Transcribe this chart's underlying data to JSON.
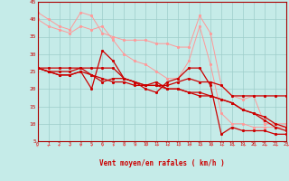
{
  "bg_color": "#c5ebe8",
  "grid_color": "#9ececa",
  "xlabel": "Vent moyen/en rafales ( km/h )",
  "xlim": [
    0,
    23
  ],
  "ylim": [
    5,
    45
  ],
  "yticks": [
    5,
    10,
    15,
    20,
    25,
    30,
    35,
    40,
    45
  ],
  "xticks": [
    0,
    1,
    2,
    3,
    4,
    5,
    6,
    7,
    8,
    9,
    10,
    11,
    12,
    13,
    14,
    15,
    16,
    17,
    18,
    19,
    20,
    21,
    22,
    23
  ],
  "lines_pink1": [
    42,
    40,
    38,
    37,
    42,
    41,
    36,
    35,
    34,
    34,
    34,
    33,
    33,
    32,
    32,
    41,
    36,
    21,
    18,
    17,
    18,
    10,
    10,
    10
  ],
  "lines_pink2": [
    40,
    38,
    37,
    36,
    38,
    37,
    38,
    34,
    30,
    28,
    27,
    25,
    23,
    23,
    28,
    38,
    27,
    13,
    10,
    10,
    9,
    9,
    9,
    9
  ],
  "lines_red1": [
    26,
    26,
    26,
    26,
    26,
    26,
    26,
    26,
    23,
    22,
    21,
    21,
    21,
    22,
    23,
    22,
    22,
    21,
    18,
    18,
    18,
    18,
    18,
    18
  ],
  "lines_red2": [
    26,
    25,
    25,
    25,
    26,
    24,
    22,
    23,
    23,
    22,
    21,
    22,
    20,
    20,
    19,
    18,
    18,
    17,
    16,
    14,
    13,
    12,
    10,
    9
  ],
  "lines_red3": [
    26,
    25,
    24,
    24,
    25,
    24,
    23,
    22,
    22,
    21,
    21,
    21,
    20,
    20,
    19,
    19,
    18,
    17,
    16,
    14,
    13,
    11,
    9,
    8
  ],
  "lines_red4": [
    26,
    25,
    24,
    24,
    25,
    20,
    31,
    28,
    23,
    22,
    20,
    19,
    22,
    23,
    26,
    26,
    21,
    7,
    9,
    8,
    8,
    8,
    7,
    7
  ],
  "pink_color": "#ff9999",
  "red_color": "#cc0000",
  "spine_color": "#aa0000",
  "arrow_angles": [
    10,
    15,
    20,
    20,
    20,
    25,
    30,
    35,
    40,
    45,
    50,
    55,
    60,
    65,
    65,
    70,
    70,
    75,
    75,
    80,
    80,
    80,
    85,
    90
  ]
}
